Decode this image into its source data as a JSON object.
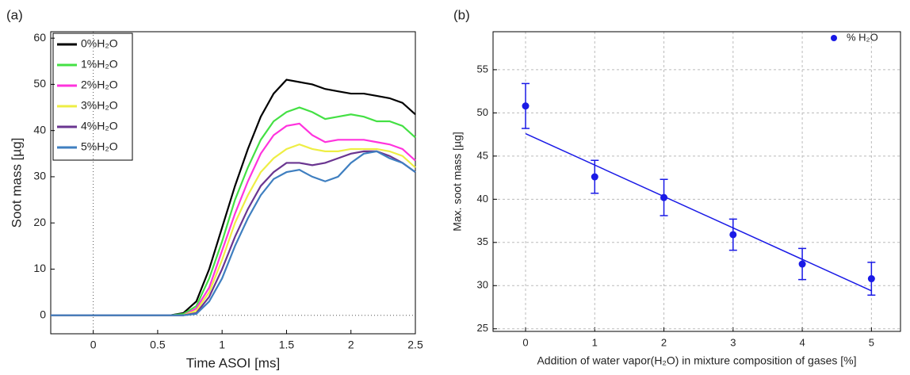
{
  "chart_data": [
    {
      "type": "line",
      "panel_label": "(a)",
      "x_label": "Time ASOI [ms]",
      "y_label": "Soot mass [µg]",
      "xlim": [
        -0.33,
        2.5
      ],
      "ylim": [
        -4,
        61.4
      ],
      "xticks": [
        0,
        0.5,
        1,
        1.5,
        2,
        2.5
      ],
      "yticks": [
        0,
        10,
        20,
        30,
        40,
        50,
        60
      ],
      "reference_lines": {
        "x": 0,
        "y": 0
      },
      "grid": false,
      "legend": "upper-left",
      "x": [
        -0.33,
        0.6,
        0.7,
        0.8,
        0.9,
        1.0,
        1.1,
        1.2,
        1.3,
        1.4,
        1.5,
        1.6,
        1.7,
        1.8,
        1.9,
        2.0,
        2.1,
        2.2,
        2.3,
        2.4,
        2.5
      ],
      "series": [
        {
          "name": "0%H₂O",
          "color": "#000000",
          "values": [
            0,
            0,
            0.5,
            3,
            10,
            19,
            28,
            36,
            43,
            48,
            51,
            50.5,
            50,
            49,
            48.5,
            48,
            48,
            47.5,
            47,
            46,
            43.5
          ]
        },
        {
          "name": "1%H₂O",
          "color": "#44e044",
          "values": [
            0,
            0,
            0.3,
            2,
            8,
            16,
            25,
            32,
            38,
            42,
            44,
            45,
            44,
            42.5,
            43,
            43.5,
            43,
            42,
            42,
            41,
            38.5
          ]
        },
        {
          "name": "2%H₂O",
          "color": "#ff33dd",
          "values": [
            0,
            0,
            0,
            1.5,
            6,
            14,
            22,
            29,
            35,
            39,
            41,
            41.5,
            39,
            37.5,
            38,
            38,
            38,
            37.5,
            37,
            36,
            33.5
          ]
        },
        {
          "name": "3%H₂O",
          "color": "#eeee44",
          "values": [
            0,
            0,
            0,
            1,
            5,
            12,
            20,
            26,
            31,
            34,
            36,
            37,
            36,
            35.5,
            35.5,
            36,
            36,
            36,
            35.5,
            34.5,
            32
          ]
        },
        {
          "name": "4%H₂O",
          "color": "#6a3590",
          "values": [
            0,
            0,
            0,
            0.5,
            4,
            10,
            17,
            23,
            28,
            31,
            33,
            33,
            32.5,
            33,
            34,
            35,
            35.5,
            35.5,
            34.5,
            33,
            31
          ]
        },
        {
          "name": "5%H₂O",
          "color": "#3f7fc0",
          "values": [
            0,
            0,
            0,
            0.3,
            3,
            8,
            15,
            21,
            26,
            29.5,
            31,
            31.5,
            30,
            29,
            30,
            33,
            35,
            35.5,
            34,
            33,
            31
          ]
        }
      ]
    },
    {
      "type": "scatter",
      "panel_label": "(b)",
      "x_label": "Addition of water vapor(H₂O) in mixture composition of gases [%]",
      "y_label": "Max. soot mass [µg]",
      "xlim": [
        -0.47,
        5.42
      ],
      "ylim": [
        24.7,
        59.4
      ],
      "xticks": [
        0,
        1,
        2,
        3,
        4,
        5
      ],
      "yticks": [
        25,
        30,
        35,
        40,
        45,
        50,
        55
      ],
      "grid": true,
      "legend": "upper-right",
      "series": [
        {
          "name": "% H₂O",
          "color": "#1a1ae6",
          "x": [
            0,
            1,
            2,
            3,
            4,
            5
          ],
          "values": [
            50.8,
            42.6,
            40.2,
            35.9,
            32.5,
            30.8
          ],
          "errors": [
            2.6,
            1.9,
            2.1,
            1.8,
            1.8,
            1.9
          ]
        }
      ],
      "fit_line": {
        "color": "#1a1ae6",
        "x": [
          0,
          5
        ],
        "values": [
          47.6,
          29.4
        ]
      }
    }
  ]
}
